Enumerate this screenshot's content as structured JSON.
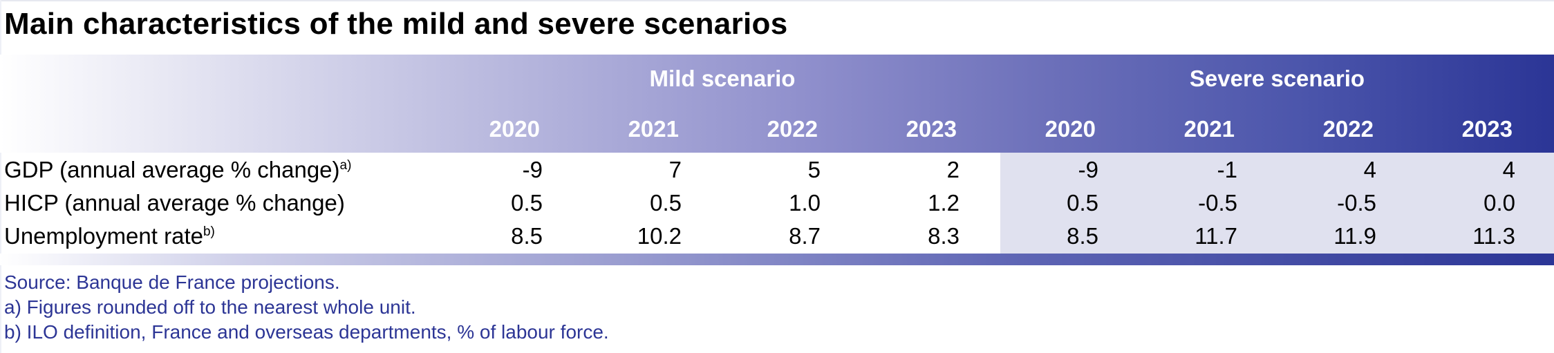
{
  "title": "Main characteristics of the mild and severe scenarios",
  "groups": {
    "mild": "Mild scenario",
    "severe": "Severe scenario"
  },
  "years": [
    "2020",
    "2021",
    "2022",
    "2023",
    "2020",
    "2021",
    "2022",
    "2023"
  ],
  "rows": [
    {
      "label": "GDP (annual average % change)",
      "note_mark": "a)",
      "values": [
        "-9",
        "7",
        "5",
        "2",
        "-9",
        "-1",
        "4",
        "4"
      ]
    },
    {
      "label": "HICP (annual average % change)",
      "note_mark": "",
      "values": [
        "0.5",
        "0.5",
        "1.0",
        "1.2",
        "0.5",
        "-0.5",
        "-0.5",
        "0.0"
      ]
    },
    {
      "label": "Unemployment rate",
      "note_mark": "b)",
      "values": [
        "8.5",
        "10.2",
        "8.7",
        "8.3",
        "8.5",
        "11.7",
        "11.9",
        "11.3"
      ]
    }
  ],
  "footnotes": {
    "source": "Source: Banque de France projections.",
    "a": "a)  Figures rounded off to the nearest whole unit.",
    "b": "b)  ILO definition, France and overseas departments, % of labour force."
  },
  "colors": {
    "header_dark": "#2b3596",
    "severe_shade": "#e0e1ef",
    "footnote_text": "#2c3595"
  }
}
